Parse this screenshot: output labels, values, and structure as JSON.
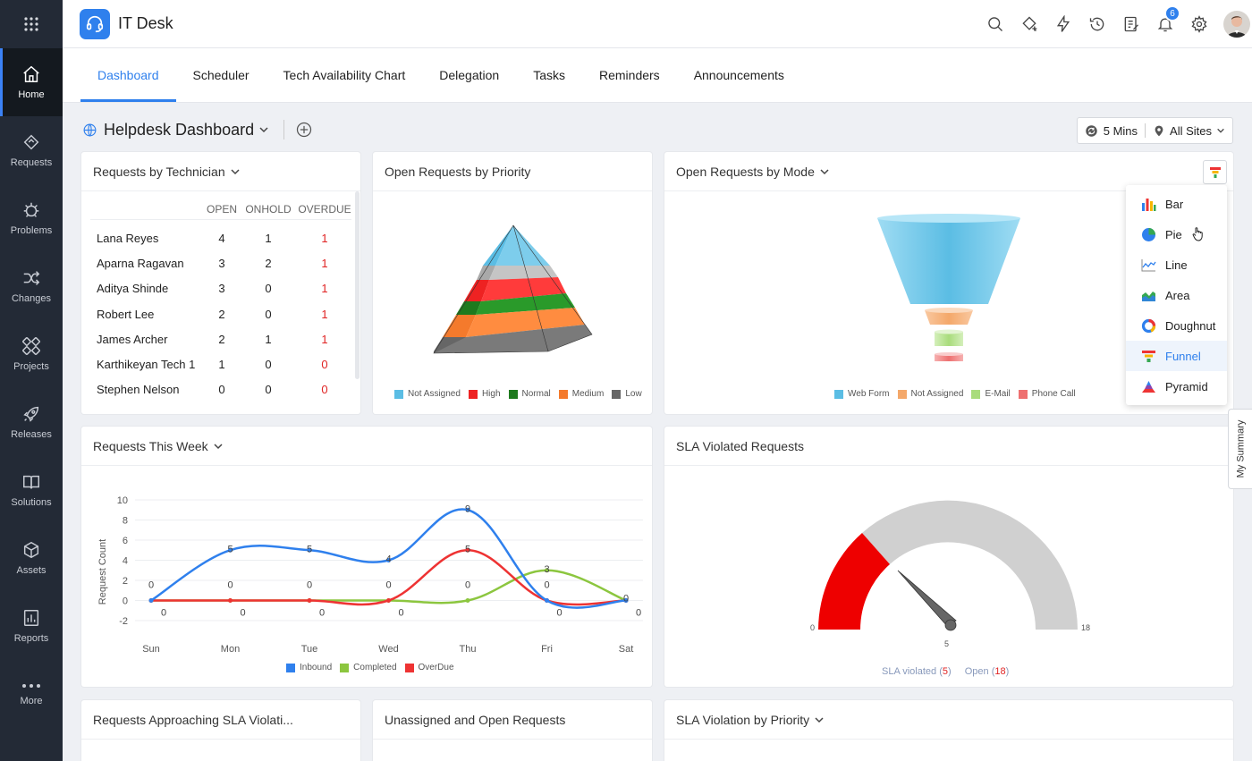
{
  "app": {
    "title": "IT Desk"
  },
  "nav": {
    "items": [
      {
        "label": "Home",
        "icon": "home-icon"
      },
      {
        "label": "Requests",
        "icon": "requests-icon"
      },
      {
        "label": "Problems",
        "icon": "problems-icon"
      },
      {
        "label": "Changes",
        "icon": "changes-icon"
      },
      {
        "label": "Projects",
        "icon": "projects-icon"
      },
      {
        "label": "Releases",
        "icon": "releases-icon"
      },
      {
        "label": "Solutions",
        "icon": "solutions-icon"
      },
      {
        "label": "Assets",
        "icon": "assets-icon"
      },
      {
        "label": "Reports",
        "icon": "reports-icon"
      },
      {
        "label": "More",
        "icon": "more-icon"
      }
    ]
  },
  "topbar": {
    "notification_count": "6"
  },
  "tabs": [
    {
      "label": "Dashboard"
    },
    {
      "label": "Scheduler"
    },
    {
      "label": "Tech Availability Chart"
    },
    {
      "label": "Delegation"
    },
    {
      "label": "Tasks"
    },
    {
      "label": "Reminders"
    },
    {
      "label": "Announcements"
    }
  ],
  "dashboard": {
    "title": "Helpdesk Dashboard",
    "refresh": "5 Mins",
    "sites": "All Sites"
  },
  "technician": {
    "title": "Requests by Technician",
    "headers": {
      "open": "OPEN",
      "onhold": "ONHOLD",
      "overdue": "OVERDUE"
    },
    "rows": [
      {
        "name": "Lana Reyes",
        "open": "4",
        "onhold": "1",
        "overdue": "1"
      },
      {
        "name": "Aparna Ragavan",
        "open": "3",
        "onhold": "2",
        "overdue": "1"
      },
      {
        "name": "Aditya Shinde",
        "open": "3",
        "onhold": "0",
        "overdue": "1"
      },
      {
        "name": "Robert Lee",
        "open": "2",
        "onhold": "0",
        "overdue": "1"
      },
      {
        "name": "James Archer",
        "open": "2",
        "onhold": "1",
        "overdue": "1"
      },
      {
        "name": "Karthikeyan Tech 1",
        "open": "1",
        "onhold": "0",
        "overdue": "0"
      },
      {
        "name": "Stephen Nelson",
        "open": "0",
        "onhold": "0",
        "overdue": "0"
      }
    ]
  },
  "priority": {
    "title": "Open Requests by Priority",
    "legend": [
      {
        "label": "Not Assigned",
        "color": "#5bbde4"
      },
      {
        "label": "High",
        "color": "#ee2222"
      },
      {
        "label": "Normal",
        "color": "#1e7a1e"
      },
      {
        "label": "Medium",
        "color": "#f47a2c"
      },
      {
        "label": "Low",
        "color": "#666666"
      }
    ]
  },
  "mode": {
    "title": "Open Requests by Mode",
    "legend": [
      {
        "label": "Web Form",
        "color": "#5bbde4"
      },
      {
        "label": "Not Assigned",
        "color": "#f4a86a"
      },
      {
        "label": "E-Mail",
        "color": "#a9dc7c"
      },
      {
        "label": "Phone Call",
        "color": "#ee7070"
      }
    ]
  },
  "chart_menu": {
    "items": [
      {
        "label": "Bar",
        "icon": "bar-chart-icon"
      },
      {
        "label": "Pie",
        "icon": "pie-chart-icon"
      },
      {
        "label": "Line",
        "icon": "line-chart-icon"
      },
      {
        "label": "Area",
        "icon": "area-chart-icon"
      },
      {
        "label": "Doughnut",
        "icon": "doughnut-chart-icon"
      },
      {
        "label": "Funnel",
        "icon": "funnel-chart-icon",
        "selected": true
      },
      {
        "label": "Pyramid",
        "icon": "pyramid-chart-icon"
      }
    ]
  },
  "week": {
    "title": "Requests This Week"
  },
  "sla": {
    "title": "SLA Violated Requests",
    "min_label": "0",
    "max_label": "18",
    "needle_label": "5",
    "legend_violated": "SLA violated",
    "legend_violated_value": "5",
    "legend_open": "Open",
    "legend_open_value": "18"
  },
  "bottom_cards": [
    {
      "title": "Requests Approaching SLA Violati..."
    },
    {
      "title": "Unassigned and Open Requests"
    },
    {
      "title": "SLA Violation by Priority"
    }
  ],
  "my_summary": "My Summary",
  "chart_data": [
    {
      "type": "line",
      "title": "Requests This Week",
      "ylabel": "Request Count",
      "xlabel": "",
      "categories": [
        "Sun",
        "Mon",
        "Tue",
        "Wed",
        "Thu",
        "Fri",
        "Sat"
      ],
      "ylim": [
        -2,
        10
      ],
      "yticks": [
        -2,
        0,
        2,
        4,
        6,
        8,
        10
      ],
      "series": [
        {
          "name": "Inbound",
          "color": "#2f80ed",
          "values": [
            0,
            5,
            5,
            4,
            9,
            0,
            0
          ]
        },
        {
          "name": "Completed",
          "color": "#8cc63f",
          "values": [
            0,
            0,
            0,
            0,
            0,
            3,
            0
          ]
        },
        {
          "name": "OverDue",
          "color": "#ee3333",
          "values": [
            0,
            0,
            0,
            0,
            5,
            0,
            0
          ]
        }
      ]
    }
  ]
}
